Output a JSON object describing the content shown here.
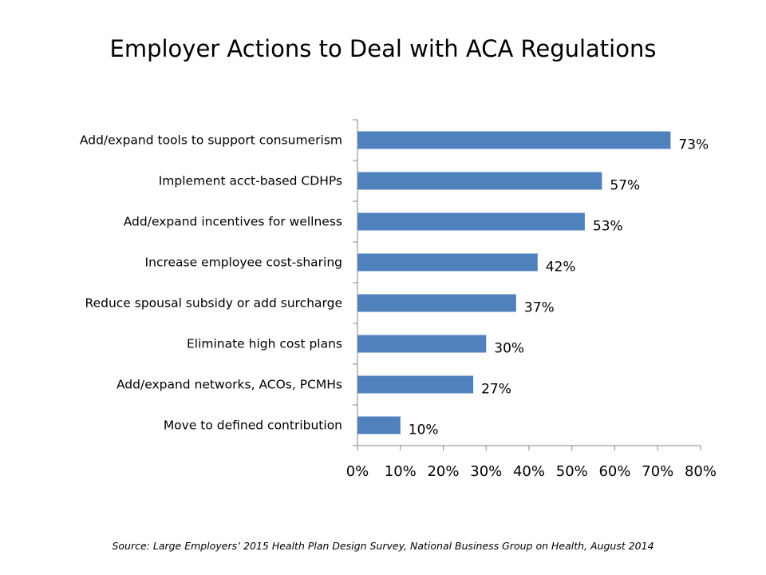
{
  "slide": {
    "title": "Employer Actions to Deal with ACA Regulations",
    "source": "Source: Large Employers’ 2015 Health Plan Design Survey, National Business Group on Health, August 2014"
  },
  "chart_data": {
    "type": "bar",
    "orientation": "horizontal",
    "title": "Employer Actions to Deal with ACA Regulations",
    "categories": [
      "Add/expand tools to support consumerism",
      "Implement acct-based CDHPs",
      "Add/expand incentives for wellness",
      "Increase employee cost-sharing",
      "Reduce spousal subsidy or add surcharge",
      "Eliminate high cost plans",
      "Add/expand networks, ACOs, PCMHs",
      "Move to defined contribution"
    ],
    "values": [
      73,
      57,
      53,
      42,
      37,
      30,
      27,
      10
    ],
    "data_labels": [
      "73%",
      "57%",
      "53%",
      "42%",
      "37%",
      "30%",
      "27%",
      "10%"
    ],
    "xlim": [
      0,
      80
    ],
    "x_ticks": [
      0,
      10,
      20,
      30,
      40,
      50,
      60,
      70,
      80
    ],
    "x_tick_labels": [
      "0%",
      "10%",
      "20%",
      "30%",
      "40%",
      "50%",
      "60%",
      "70%",
      "80%"
    ],
    "xlabel": "",
    "ylabel": "",
    "grid": false,
    "legend": "none",
    "bar_color": "#4F81BD",
    "axis_color": "#868686"
  }
}
